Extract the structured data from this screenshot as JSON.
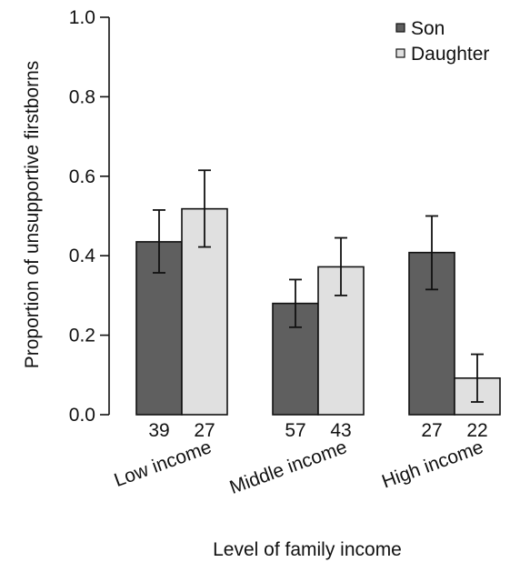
{
  "chart_data": {
    "type": "bar",
    "title": "",
    "xlabel": "Level of family income",
    "ylabel": "Proportion of unsupportive firstborns",
    "ylim": [
      0,
      1.0
    ],
    "yticks": [
      "0.0",
      "0.2",
      "0.4",
      "0.6",
      "0.8",
      "1.0"
    ],
    "categories": [
      "Low income",
      "Middle income",
      "High income"
    ],
    "grid": false,
    "legend_position": "top-right",
    "series": [
      {
        "name": "Son",
        "color": "#5f5f5f",
        "values": [
          0.435,
          0.28,
          0.408
        ],
        "error_low": [
          0.357,
          0.22,
          0.315
        ],
        "error_high": [
          0.515,
          0.34,
          0.5
        ],
        "counts": [
          "39",
          "57",
          "27"
        ]
      },
      {
        "name": "Daughter",
        "color": "#e0e0e0",
        "values": [
          0.518,
          0.372,
          0.092
        ],
        "error_low": [
          0.422,
          0.3,
          0.032
        ],
        "error_high": [
          0.615,
          0.445,
          0.152
        ],
        "counts": [
          "27",
          "43",
          "22"
        ]
      }
    ]
  }
}
